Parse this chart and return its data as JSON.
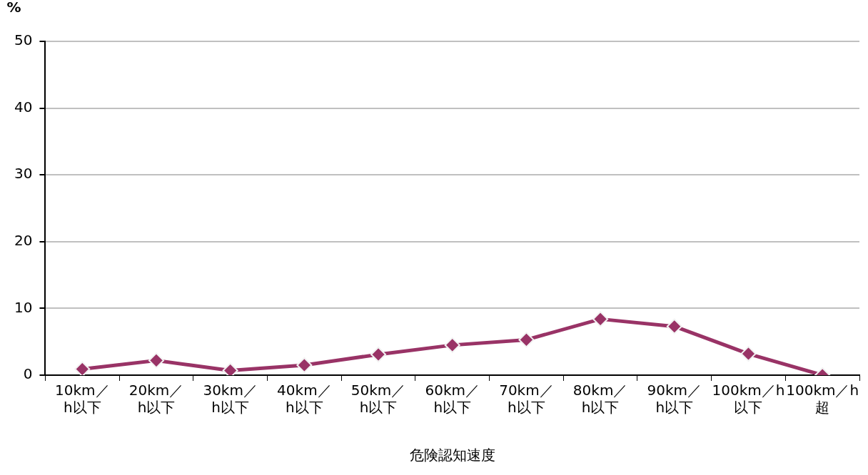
{
  "chart_data": {
    "type": "line",
    "xlabel": "危険認知速度",
    "ylabel": "%",
    "categories": [
      "10km／\nh以下",
      "20km／\nh以下",
      "30km／\nh以下",
      "40km／\nh以下",
      "50km／\nh以下",
      "60km／\nh以下",
      "70km／\nh以下",
      "80km／\nh以下",
      "90km／\nh以下",
      "100km／h\n以下",
      "100km／h\n超"
    ],
    "series": [
      {
        "color": "#993366",
        "values": [
          0.9,
          2.2,
          0.7,
          1.5,
          3.1,
          4.5,
          5.3,
          8.4,
          7.3,
          3.2,
          0
        ]
      }
    ],
    "ylim": [
      0,
      50
    ],
    "yticks": [
      0,
      10,
      20,
      30,
      40,
      50
    ],
    "grid": "y",
    "legend": false,
    "marker": "diamond",
    "line_style": "solid"
  }
}
